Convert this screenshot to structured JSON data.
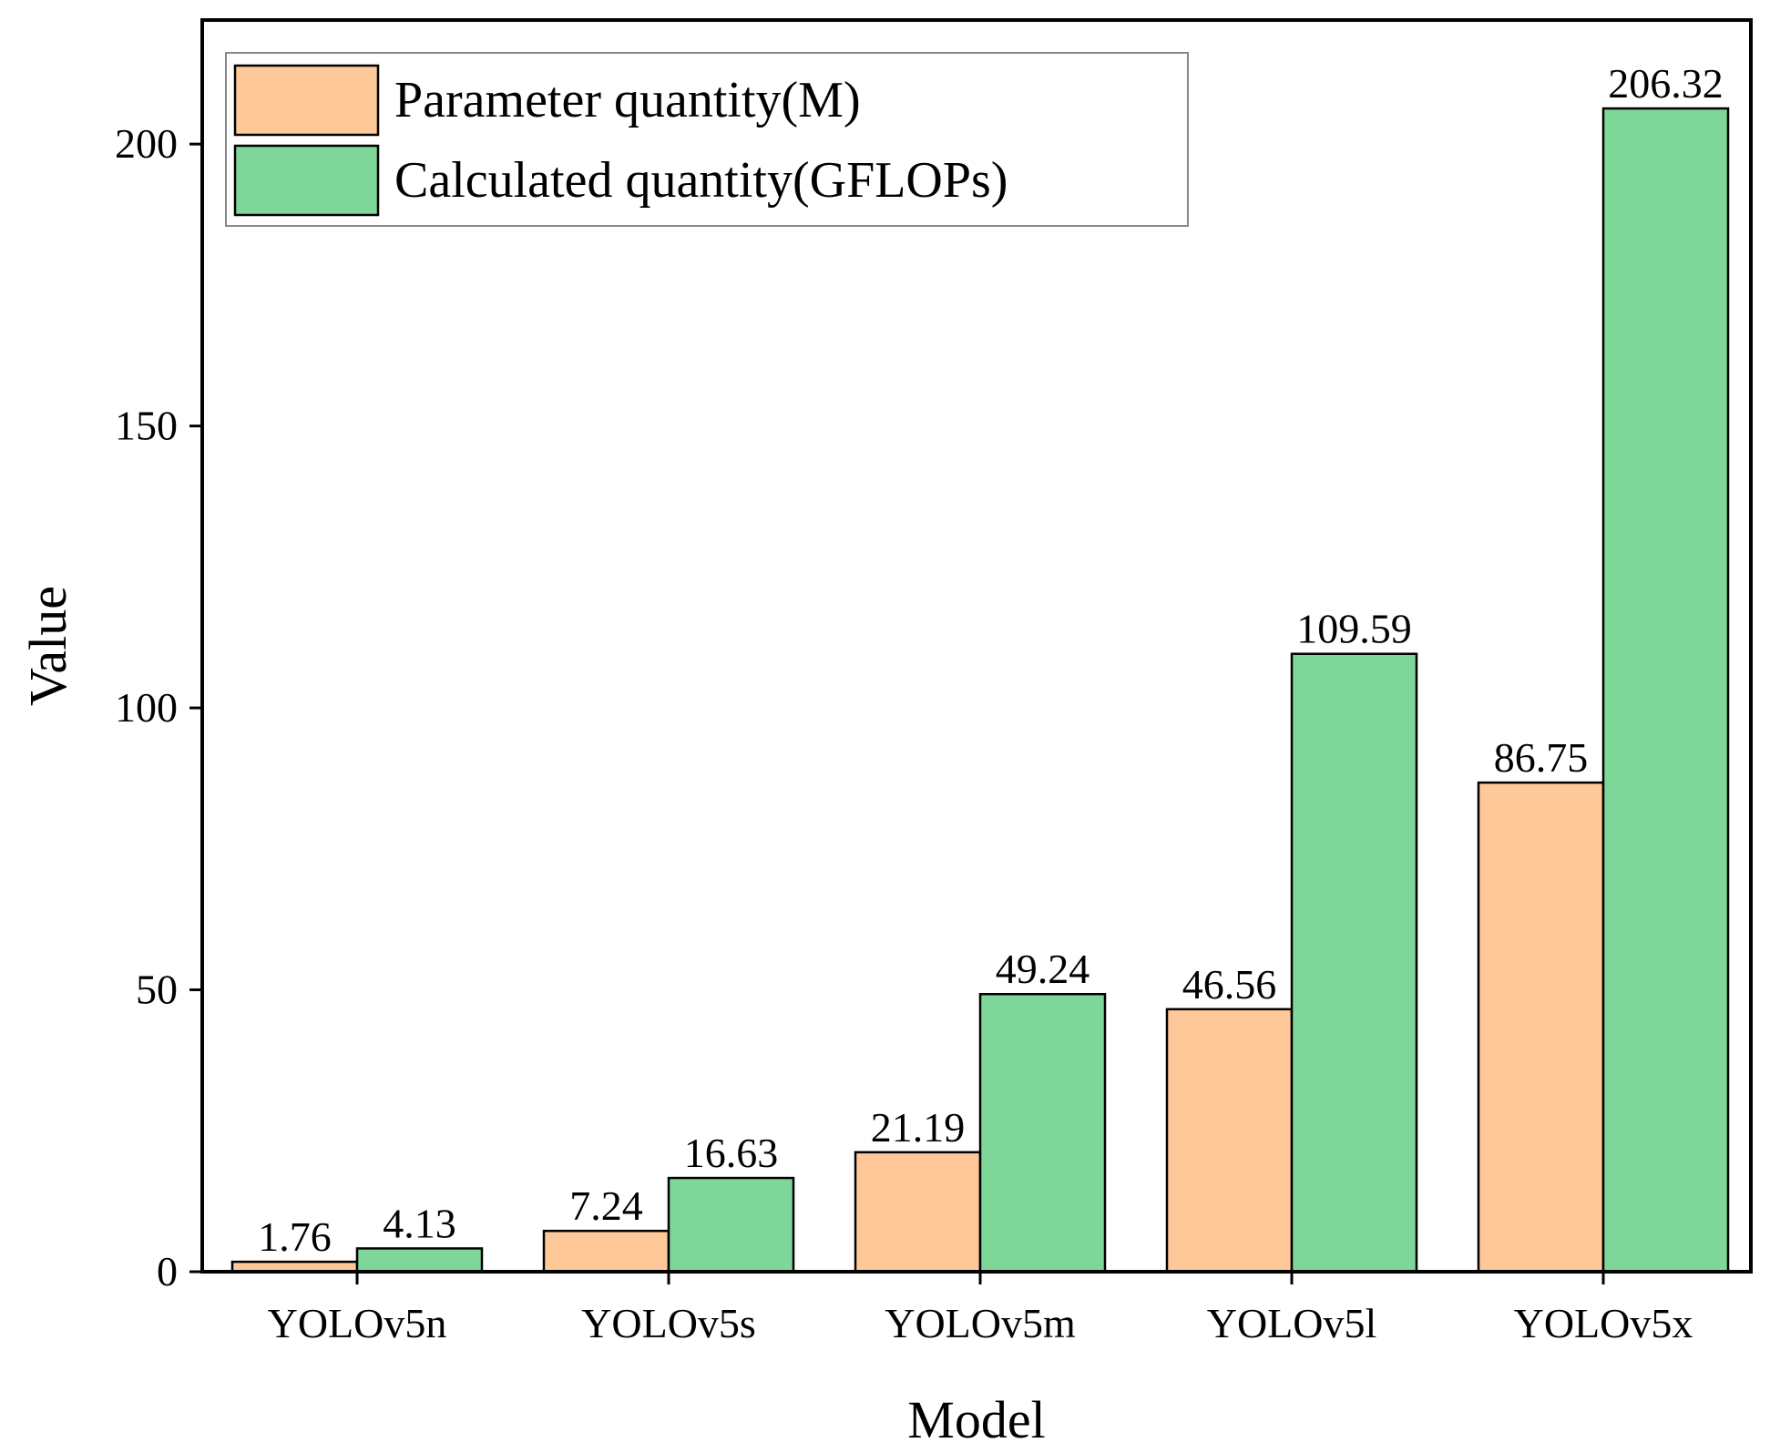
{
  "chart_data": {
    "type": "bar",
    "title": "",
    "xlabel": "Model",
    "ylabel": "Value",
    "ylim": [
      0,
      222
    ],
    "yticks": [
      0,
      50,
      100,
      150,
      200
    ],
    "categories": [
      "YOLOv5n",
      "YOLOv5s",
      "YOLOv5m",
      "YOLOv5l",
      "YOLOv5x"
    ],
    "series": [
      {
        "name": "Parameter quantity(M)",
        "color": "#FFC898",
        "values": [
          1.76,
          7.24,
          21.19,
          46.56,
          86.75
        ],
        "labels": [
          "1.76",
          "7.24",
          "21.19",
          "46.56",
          "86.75"
        ]
      },
      {
        "name": "Calculated quantity(GFLOPs)",
        "color": "#7FD699",
        "values": [
          4.13,
          16.63,
          49.24,
          109.59,
          206.32
        ],
        "labels": [
          "4.13",
          "16.63",
          "49.24",
          "109.59",
          "206.32"
        ]
      }
    ],
    "legend_position": "top-left",
    "grid": false
  }
}
